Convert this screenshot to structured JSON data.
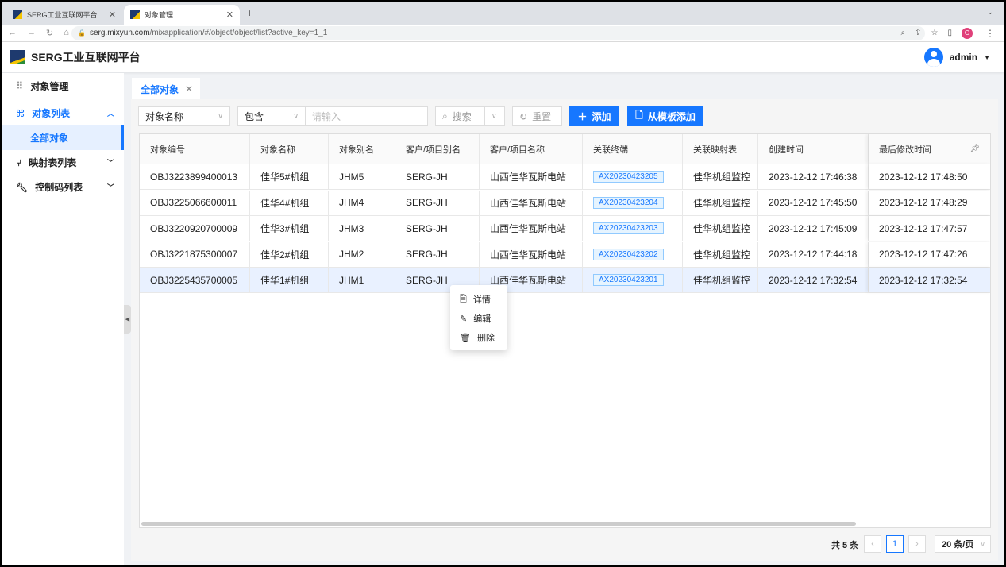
{
  "browser": {
    "tabs": [
      {
        "title": "SERG工业互联网平台",
        "active": false
      },
      {
        "title": "对象管理",
        "active": true
      }
    ],
    "url_host": "serg.mixyun.com",
    "url_path": "/mixapplication/#/object/object/list?active_key=1_1",
    "profile_initial": "G"
  },
  "app": {
    "title": "SERG工业互联网平台",
    "user": "admin"
  },
  "sidebar": {
    "header": "对象管理",
    "items": [
      {
        "label": "对象列表",
        "expanded": true,
        "children": [
          {
            "label": "全部对象",
            "active": true
          }
        ]
      },
      {
        "label": "映射表列表"
      },
      {
        "label": "控制码列表"
      }
    ]
  },
  "page_tab": "全部对象",
  "filters": {
    "field": "对象名称",
    "operator": "包含",
    "placeholder": "请输入",
    "search": "搜索",
    "reset": "重置",
    "add": "添加",
    "add_from_template": "从模板添加"
  },
  "table": {
    "columns": [
      "对象编号",
      "对象名称",
      "对象别名",
      "客户/项目别名",
      "客户/项目名称",
      "关联终端",
      "关联映射表",
      "创建时间",
      "最后修改时间"
    ],
    "rows": [
      [
        "OBJ3223899400013",
        "佳华5#机组",
        "JHM5",
        "SERG-JH",
        "山西佳华瓦斯电站",
        "AX20230423205",
        "佳华机组监控",
        "2023-12-12 17:46:38",
        "2023-12-12 17:48:50"
      ],
      [
        "OBJ3225066600011",
        "佳华4#机组",
        "JHM4",
        "SERG-JH",
        "山西佳华瓦斯电站",
        "AX20230423204",
        "佳华机组监控",
        "2023-12-12 17:45:50",
        "2023-12-12 17:48:29"
      ],
      [
        "OBJ3220920700009",
        "佳华3#机组",
        "JHM3",
        "SERG-JH",
        "山西佳华瓦斯电站",
        "AX20230423203",
        "佳华机组监控",
        "2023-12-12 17:45:09",
        "2023-12-12 17:47:57"
      ],
      [
        "OBJ3221875300007",
        "佳华2#机组",
        "JHM2",
        "SERG-JH",
        "山西佳华瓦斯电站",
        "AX20230423202",
        "佳华机组监控",
        "2023-12-12 17:44:18",
        "2023-12-12 17:47:26"
      ],
      [
        "OBJ3225435700005",
        "佳华1#机组",
        "JHM1",
        "SERG-JH",
        "山西佳华瓦斯电站",
        "AX20230423201",
        "佳华机组监控",
        "2023-12-12 17:32:54",
        "2023-12-12 17:32:54"
      ]
    ]
  },
  "context_menu": [
    "详情",
    "编辑",
    "删除"
  ],
  "pagination": {
    "total": "共 5 条",
    "current": "1",
    "page_size": "20 条/页"
  },
  "colors": {
    "primary": "#1677ff"
  }
}
